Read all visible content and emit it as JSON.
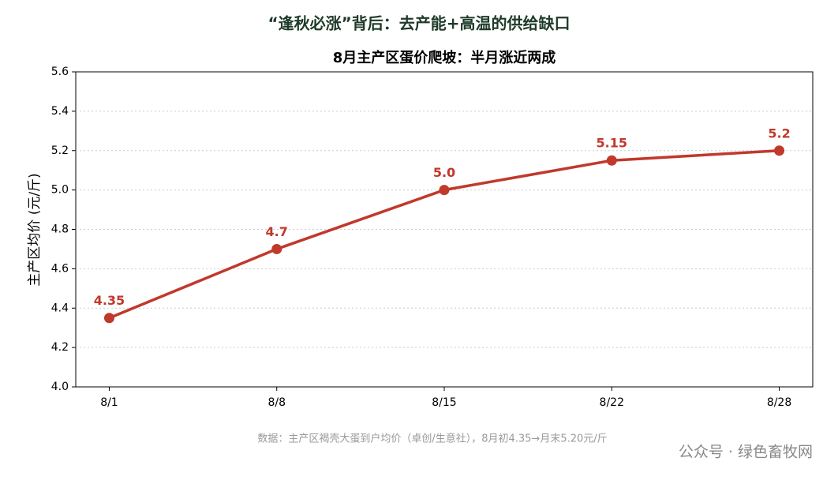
{
  "chart_data": {
    "type": "line",
    "title": "“逢秋必涨”背后：去产能+高温的供给缺口",
    "subtitle": "8月主产区蛋价爬坡：半月涨近两成",
    "y_label": "主产区均价 (元/斤)",
    "source": "数据：主产区褐壳大蛋到户均价（卓创/生意社），8月初4.35→月末5.20元/斤",
    "watermark": "公众号 · 绿色畜牧网",
    "categories": [
      "8/1",
      "8/8",
      "8/15",
      "8/22",
      "8/28"
    ],
    "series": [
      {
        "name": "主产区均价",
        "color": "#c0392b",
        "values": [
          4.35,
          4.7,
          5.0,
          5.15,
          5.2
        ],
        "value_labels": [
          "4.35",
          "4.7",
          "5.0",
          "5.15",
          "5.2"
        ]
      }
    ],
    "ylim": [
      4.0,
      5.6
    ],
    "yticks": [
      {
        "value": 4.0,
        "label": "4.0"
      },
      4.2,
      4.4,
      4.6,
      4.8,
      {
        "value": 5.0,
        "label": "5.0"
      },
      5.2,
      5.4,
      5.6
    ],
    "grid": true
  }
}
